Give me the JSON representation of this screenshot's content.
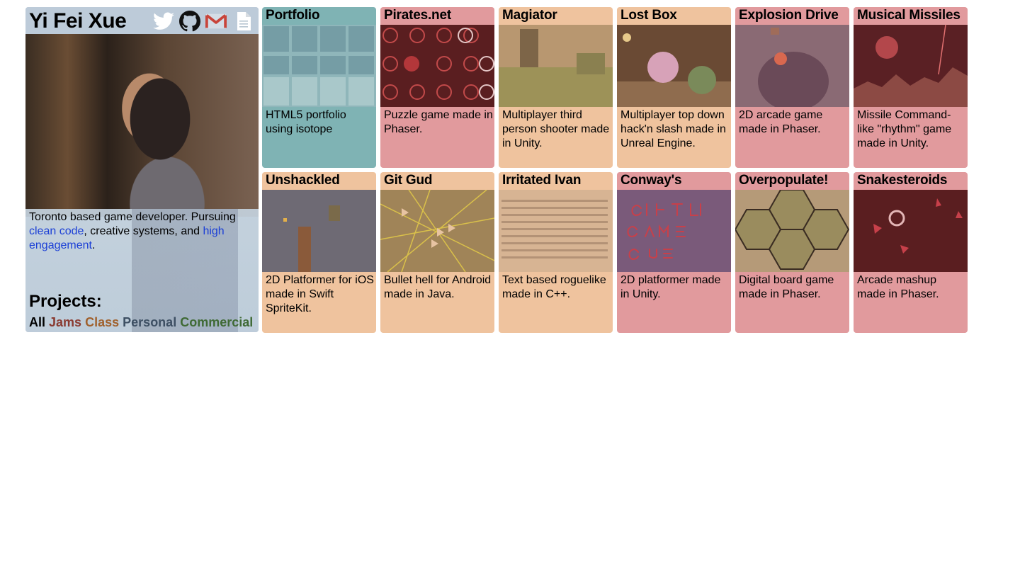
{
  "profile": {
    "name": "Yi Fei Xue",
    "social_icons": [
      "twitter-icon",
      "github-icon",
      "gmail-icon",
      "resume-document-icon"
    ],
    "bio": {
      "pre": "Toronto based game developer. Pursuing ",
      "link1": "clean code",
      "mid": ", creative systems, and ",
      "link2": "high engagement",
      "post": "."
    },
    "projects_heading": "Projects:",
    "filters": [
      {
        "label": "All",
        "color": "#000000"
      },
      {
        "label": "Jams",
        "color": "#8a3b32"
      },
      {
        "label": "Class",
        "color": "#a0612e"
      },
      {
        "label": "Personal",
        "color": "#3d4f63"
      },
      {
        "label": "Commercial",
        "color": "#3f6a35"
      }
    ]
  },
  "colors": {
    "teal": "#7fb3b4",
    "pink": "#e19a9d",
    "peach": "#efc39e",
    "link": "#1b3fd6"
  },
  "tiles": [
    {
      "title": "Portfolio",
      "desc": "HTML5 portfolio using isotope",
      "color": "#7fb3b4"
    },
    {
      "title": "Pirates.net",
      "desc": "Puzzle game made in Phaser.",
      "color": "#e19a9d"
    },
    {
      "title": "Magiator",
      "desc": "Multiplayer third person shooter made in Unity.",
      "color": "#efc39e"
    },
    {
      "title": "Lost Box",
      "desc": "Multiplayer top down hack'n slash made in Unreal Engine.",
      "color": "#efc39e"
    },
    {
      "title": "Explosion Drive",
      "desc": "2D arcade game made in Phaser.",
      "color": "#e19a9d"
    },
    {
      "title": "Musical Missiles",
      "desc": "Missile Command-like \"rhythm\" game made in Unity.",
      "color": "#e19a9d"
    },
    {
      "title": "Unshackled",
      "desc": "2D Platformer for iOS made in Swift SpriteKit.",
      "color": "#efc39e"
    },
    {
      "title": "Git Gud",
      "desc": "Bullet hell for Android made in Java.",
      "color": "#efc39e"
    },
    {
      "title": "Irritated Ivan",
      "desc": "Text based roguelike made in C++.",
      "color": "#efc39e"
    },
    {
      "title": "Conway's",
      "desc": "2D platformer made in Unity.",
      "color": "#e19a9d"
    },
    {
      "title": "Overpopulate!",
      "desc": "Digital board game made in Phaser.",
      "color": "#e19a9d"
    },
    {
      "title": "Snakesteroids",
      "desc": "Arcade mashup made in Phaser.",
      "color": "#e19a9d"
    }
  ]
}
